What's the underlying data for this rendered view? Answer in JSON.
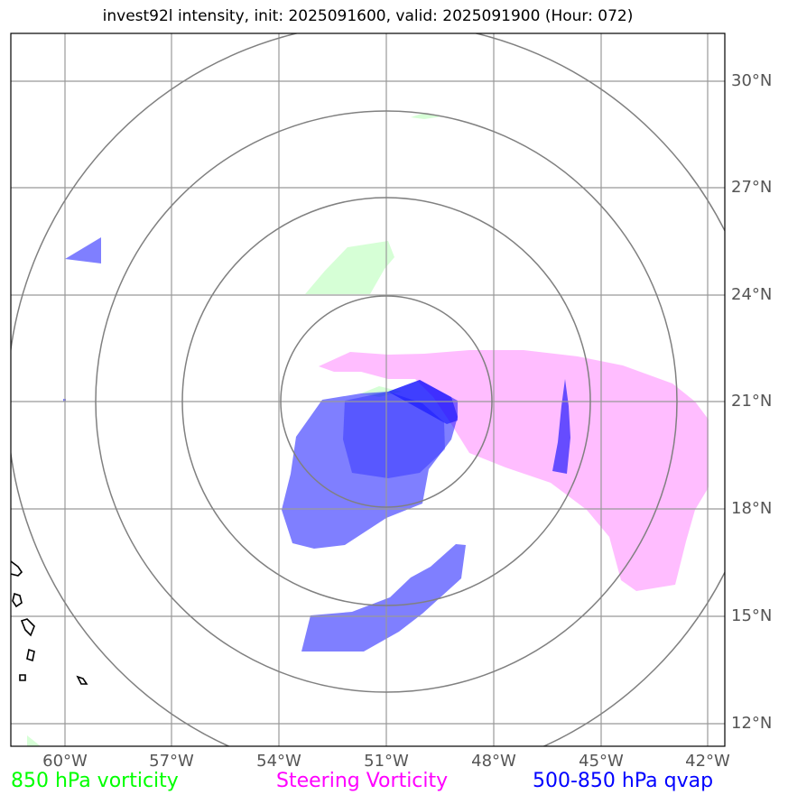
{
  "title": "invest92l intensity, init: 2025091600, valid: 2025091900 (Hour: 072)",
  "lat_ticks": [
    "30°N",
    "27°N",
    "24°N",
    "21°N",
    "18°N",
    "15°N",
    "12°N"
  ],
  "lon_ticks": [
    "60°W",
    "57°W",
    "54°W",
    "51°W",
    "48°W",
    "45°W",
    "42°W"
  ],
  "legend": [
    {
      "label": "850 hPa vorticity",
      "color": "#00ff00"
    },
    {
      "label": "Steering Vorticity",
      "color": "#ff00ff"
    },
    {
      "label": "500-850 hPa qvap",
      "color": "#0000ff"
    }
  ],
  "colors": {
    "vorticity_850": "#ccffcc",
    "steering": "#ff99ff",
    "qvap": "#0000ff",
    "grid": "#999999",
    "range_rings": "#808080",
    "coastline": "#000000"
  }
}
